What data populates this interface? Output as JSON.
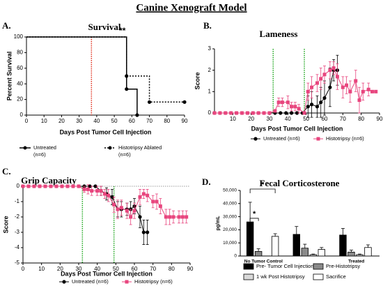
{
  "title": "Canine Xenograft Model",
  "chart_data": [
    {
      "type": "step",
      "panel": "A.",
      "title": "Survival",
      "annotation": "**",
      "xlabel": "Days Post Tumor Cell Injection",
      "ylabel": "Percent Survival",
      "xlim": [
        0,
        90
      ],
      "xticks": [
        0,
        10,
        20,
        30,
        40,
        50,
        60,
        70,
        80,
        90
      ],
      "ylim": [
        0,
        100
      ],
      "yticks": [
        0,
        20,
        40,
        60,
        80,
        100
      ],
      "vlines": [
        37
      ],
      "vline_color": "#e0301e",
      "series": [
        {
          "name": "Untreated",
          "note": "(n=6)",
          "color": "#000000",
          "dashed": false,
          "marker": "circle",
          "x": [
            0,
            57,
            63
          ],
          "values": [
            100,
            33.3,
            0
          ]
        },
        {
          "name": "Histotripsy Ablated",
          "note": "(n=6)",
          "color": "#000000",
          "dashed": true,
          "marker": "square",
          "x": [
            0,
            57,
            70,
            90
          ],
          "values": [
            100,
            50,
            16.7,
            16.7
          ]
        }
      ]
    },
    {
      "type": "line",
      "panel": "B.",
      "title": "Lameness",
      "xlabel": "Days Post Tumor Cell Injection",
      "ylabel": "Score",
      "xlim": [
        0,
        90
      ],
      "xticks": [
        10,
        20,
        30,
        40,
        50,
        60,
        70,
        80,
        90
      ],
      "ylim": [
        0,
        3
      ],
      "yticks": [
        0,
        1,
        2,
        3
      ],
      "vlines": [
        32,
        49
      ],
      "vline_color": "#22a822",
      "series": [
        {
          "name": "Untreated (n=6)",
          "color": "#000000",
          "marker": "circle",
          "x": [
            0,
            3,
            6,
            9,
            12,
            15,
            18,
            21,
            24,
            27,
            30,
            33,
            36,
            39,
            42,
            45,
            48,
            51,
            53,
            56,
            58,
            60,
            63,
            65,
            67
          ],
          "values": [
            0,
            0,
            0,
            0,
            0,
            0,
            0,
            0,
            0,
            0,
            0,
            0,
            0,
            0,
            0,
            0,
            0,
            0.3,
            0.4,
            0.3,
            0.5,
            0.7,
            1.2,
            2,
            2
          ],
          "errors": [
            null,
            null,
            null,
            null,
            null,
            null,
            null,
            null,
            null,
            null,
            null,
            null,
            null,
            null,
            null,
            null,
            null,
            0.5,
            0.6,
            0.5,
            0.7,
            0.8,
            0.9,
            0.5,
            0.7
          ]
        },
        {
          "name": "Histotripsy (n=6)",
          "color": "#e8457e",
          "marker": "square",
          "x": [
            0,
            3,
            6,
            9,
            12,
            15,
            18,
            21,
            24,
            27,
            30,
            33,
            35,
            37,
            40,
            42,
            44,
            46,
            49,
            51,
            53,
            56,
            58,
            60,
            63,
            65,
            67,
            70,
            72,
            74,
            77,
            79,
            81,
            84,
            86,
            88
          ],
          "values": [
            0,
            0,
            0,
            0,
            0,
            0,
            0,
            0,
            0,
            0,
            0,
            0.1,
            0.5,
            0.5,
            0.5,
            0.3,
            0.3,
            0.2,
            0,
            1,
            1.2,
            1.4,
            1.6,
            1.8,
            2,
            2.1,
            1.7,
            1.2,
            1.3,
            1,
            1.5,
            0.6,
            1,
            1.1,
            1,
            1
          ],
          "errors": [
            null,
            null,
            null,
            null,
            null,
            null,
            null,
            null,
            null,
            null,
            null,
            null,
            0.2,
            0.2,
            0.3,
            0.2,
            0.2,
            0.2,
            null,
            0.4,
            0.5,
            0.4,
            0.5,
            0.4,
            0.4,
            0.3,
            0.6,
            0.5,
            0.4,
            0.5,
            0.5,
            0.6,
            0.4,
            0.3,
            null,
            null
          ]
        }
      ]
    },
    {
      "type": "line",
      "panel": "C.",
      "title": "Grip Capacity",
      "xlabel": "Days Post Tumor Cell Injection",
      "ylabel": "Score",
      "xlim": [
        0,
        90
      ],
      "xticks": [
        0,
        10,
        20,
        30,
        40,
        50,
        60,
        70,
        80,
        90
      ],
      "ylim": [
        -5,
        0
      ],
      "yticks": [
        0,
        -1,
        -2,
        -3,
        -4,
        -5
      ],
      "vlines": [
        32,
        49
      ],
      "vline_color": "#22a822",
      "hlines": [
        0
      ],
      "series": [
        {
          "name": "Untreated (n=6)",
          "color": "#000000",
          "marker": "circle",
          "x": [
            0,
            3,
            6,
            9,
            12,
            15,
            18,
            21,
            24,
            27,
            30,
            33,
            36,
            39,
            42,
            45,
            48,
            51,
            53,
            56,
            58,
            60,
            63,
            65,
            67
          ],
          "values": [
            0,
            0,
            0,
            0,
            0,
            0,
            0,
            0,
            0,
            0,
            0,
            0,
            0,
            0,
            -0.3,
            -0.5,
            -0.7,
            -1.5,
            -1.5,
            -1.5,
            -1.5,
            -1.3,
            -2,
            -3,
            -3
          ],
          "errors": [
            null,
            null,
            null,
            null,
            null,
            null,
            null,
            null,
            null,
            null,
            null,
            null,
            null,
            null,
            0.3,
            0.4,
            0.5,
            0.5,
            0.5,
            0.4,
            0.5,
            0.5,
            0.7,
            0.8,
            0.8
          ]
        },
        {
          "name": "Histotripsy (n=6)",
          "color": "#e8457e",
          "marker": "square",
          "x": [
            0,
            3,
            6,
            9,
            12,
            15,
            18,
            21,
            24,
            27,
            30,
            33,
            35,
            37,
            40,
            42,
            44,
            46,
            49,
            51,
            53,
            56,
            58,
            60,
            63,
            65,
            67,
            70,
            72,
            74,
            77,
            79,
            81,
            84,
            86,
            88
          ],
          "values": [
            0,
            0,
            0,
            0,
            0,
            0,
            0,
            0,
            0,
            0,
            0,
            -0.2,
            -0.2,
            -0.3,
            -0.3,
            -0.3,
            -0.5,
            -0.6,
            -1.2,
            -1.5,
            -1.4,
            -1.6,
            -2,
            -1.6,
            -0.7,
            -0.5,
            -0.6,
            -1,
            -1,
            -1.3,
            -2,
            -2,
            -2,
            -2,
            -2,
            -2
          ],
          "errors": [
            null,
            null,
            null,
            null,
            null,
            null,
            null,
            null,
            null,
            null,
            null,
            0.2,
            0.3,
            0.3,
            0.3,
            0.3,
            0.3,
            0.4,
            0.5,
            0.6,
            0.5,
            0.5,
            0.5,
            0.5,
            0.5,
            0.3,
            0.4,
            0.4,
            0.5,
            0.5,
            0.5,
            0.5,
            0.4,
            0.4,
            0.4,
            0.4
          ]
        }
      ]
    },
    {
      "type": "bar",
      "panel": "D.",
      "title": "Fecal Corticosterone",
      "ylabel": "pg/mL",
      "annotations": [
        "*",
        "*"
      ],
      "categories": [
        "No Tumor Control",
        null,
        "Treated"
      ],
      "ylim": [
        0,
        50000
      ],
      "yticks": [
        0,
        {
          "value": 10000,
          "label": "10,000"
        },
        {
          "value": 20000,
          "label": "20,000"
        },
        {
          "value": 30000,
          "label": "30,000"
        },
        {
          "value": 40000,
          "label": "40,000"
        },
        {
          "value": 50000,
          "label": "50,000"
        }
      ],
      "series": [
        {
          "name": "Pre- Tumor Cell Injection",
          "color": "#000000",
          "values": [
            26000,
            16500,
            16000
          ],
          "errors": [
            15000,
            6000,
            5000
          ]
        },
        {
          "name": "Pre-Histotripsy",
          "color": "#8a8a8a",
          "values": [
            3500,
            6000,
            3000
          ],
          "errors": [
            2000,
            3000,
            1500
          ]
        },
        {
          "name": "1 wk Post Histotripsy",
          "color": "#d9d9d9",
          "values": [
            null,
            1000,
            1000
          ],
          "errors": [
            null,
            500,
            500
          ]
        },
        {
          "name": "Sacrifice",
          "color": "#ffffff",
          "values": [
            15000,
            5000,
            6500
          ],
          "errors": [
            2000,
            1500,
            2000
          ]
        }
      ]
    }
  ]
}
